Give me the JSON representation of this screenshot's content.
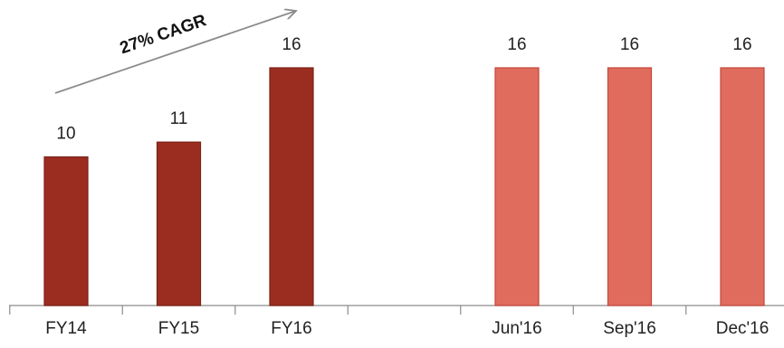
{
  "chart_data": {
    "type": "bar",
    "title": "",
    "xlabel": "",
    "ylabel": "",
    "ylim": [
      0,
      16
    ],
    "grid": false,
    "legend": "none",
    "categories": [
      "FY14",
      "FY15",
      "FY16",
      "",
      "Jun'16",
      "Sep'16",
      "Dec'16"
    ],
    "values": [
      10,
      11,
      16,
      null,
      16,
      16,
      16
    ],
    "value_labels": [
      "10",
      "11",
      "16",
      "",
      "16",
      "16",
      "16"
    ],
    "bar_colors": [
      "#9b2d20",
      "#9b2d20",
      "#9b2d20",
      null,
      "#e06c5e",
      "#e06c5e",
      "#e06c5e"
    ],
    "bar_border_colors": [
      "#7a2216",
      "#7a2216",
      "#7a2216",
      null,
      "#c2473a",
      "#c2473a",
      "#c2473a"
    ],
    "annotations": [
      {
        "text": "27% CAGR",
        "from_category": "FY14",
        "to_category": "FY16",
        "style": "arrow",
        "color": "#8c8c8c"
      }
    ]
  }
}
